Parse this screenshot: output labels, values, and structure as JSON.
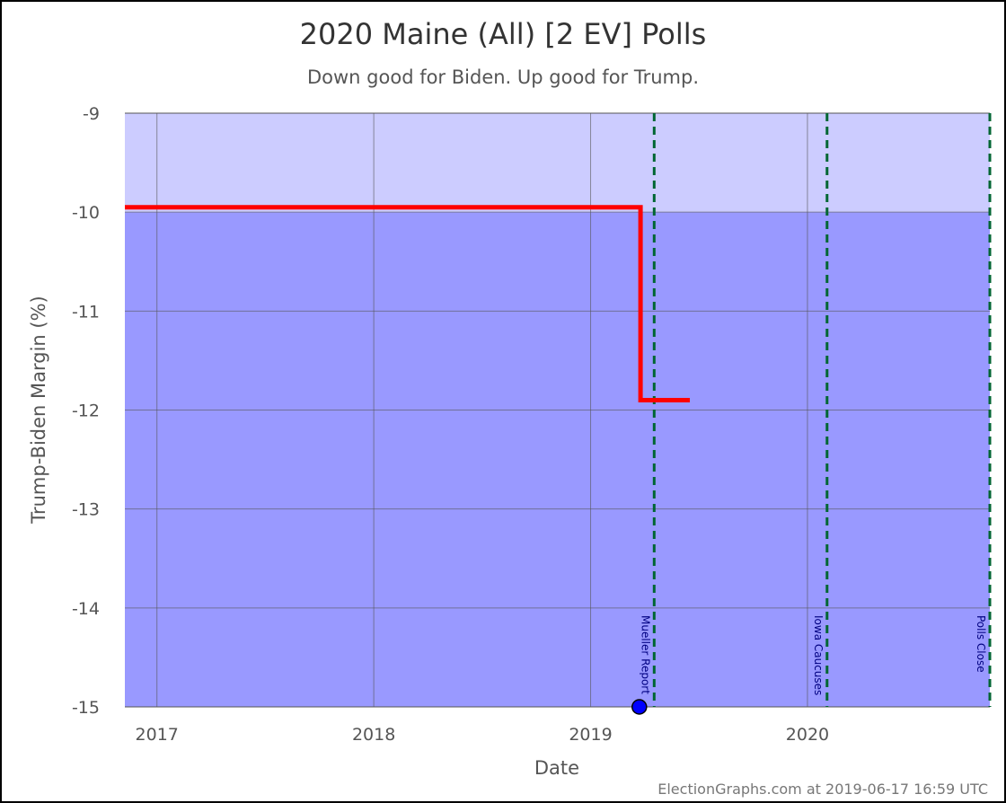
{
  "chart_data": {
    "type": "line",
    "title": "2020 Maine (All) [2 EV] Polls",
    "subtitle": "Down good for Biden. Up good for Trump.",
    "xlabel": "Date",
    "ylabel": "Trump-Biden Margin (%)",
    "xlim": [
      "2016-11-08",
      "2020-11-03"
    ],
    "ylim": [
      -15,
      -9
    ],
    "x_ticks": [
      {
        "date": "2017-01-01",
        "label": "2017"
      },
      {
        "date": "2018-01-01",
        "label": "2018"
      },
      {
        "date": "2019-01-01",
        "label": "2019"
      },
      {
        "date": "2020-01-01",
        "label": "2020"
      }
    ],
    "y_ticks": [
      -9,
      -10,
      -11,
      -12,
      -13,
      -14,
      -15
    ],
    "bands": [
      {
        "from": -10,
        "to": -9,
        "color": "#ccccff"
      },
      {
        "from": -15,
        "to": -10,
        "color": "#9999ff"
      }
    ],
    "series": [
      {
        "color": "#ff0000",
        "step": true,
        "points": [
          {
            "x": "2016-11-08",
            "y": -9.95
          },
          {
            "x": "2019-03-26",
            "y": -9.95
          },
          {
            "x": "2019-03-26",
            "y": -11.9
          },
          {
            "x": "2019-06-17",
            "y": -11.9
          }
        ]
      }
    ],
    "polls": [
      {
        "x": "2019-03-24",
        "y": -15,
        "color": "#0000ff"
      }
    ],
    "events": [
      {
        "x": "2019-04-18",
        "label": "Mueller Report",
        "color": "#006633"
      },
      {
        "x": "2020-02-03",
        "label": "Iowa Caucuses",
        "color": "#006633"
      },
      {
        "x": "2020-11-03",
        "label": "Polls Close",
        "color": "#006633"
      }
    ],
    "grid": true,
    "legend": "none"
  },
  "credit": "ElectionGraphs.com at 2019-06-17 16:59 UTC"
}
